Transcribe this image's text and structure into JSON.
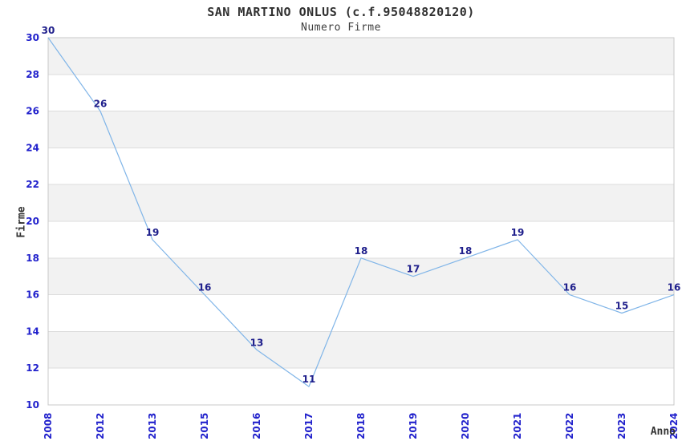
{
  "chart_data": {
    "type": "line",
    "title": "SAN MARTINO ONLUS (c.f.95048820120)",
    "subtitle": "Numero Firme",
    "xlabel": "Anno",
    "ylabel": "Firme",
    "categories": [
      "2008",
      "2012",
      "2013",
      "2015",
      "2016",
      "2017",
      "2018",
      "2019",
      "2020",
      "2021",
      "2022",
      "2023",
      "2024"
    ],
    "values": [
      30,
      26,
      19,
      16,
      13,
      11,
      18,
      17,
      18,
      19,
      16,
      15,
      16
    ],
    "ylim": [
      10,
      30
    ],
    "ytick_step": 2,
    "grid": true,
    "band_stripes": true,
    "legend_position": "none",
    "markers": "none",
    "colors": {
      "line": "#80b5e8",
      "band": "#f2f2f2",
      "grid": "#dcdcdc",
      "border": "#c8c8c8",
      "tick_label": "#2121cc",
      "value_label": "#20208c",
      "title": "#303030",
      "axis_name": "#333333",
      "background": "#ffffff"
    }
  }
}
